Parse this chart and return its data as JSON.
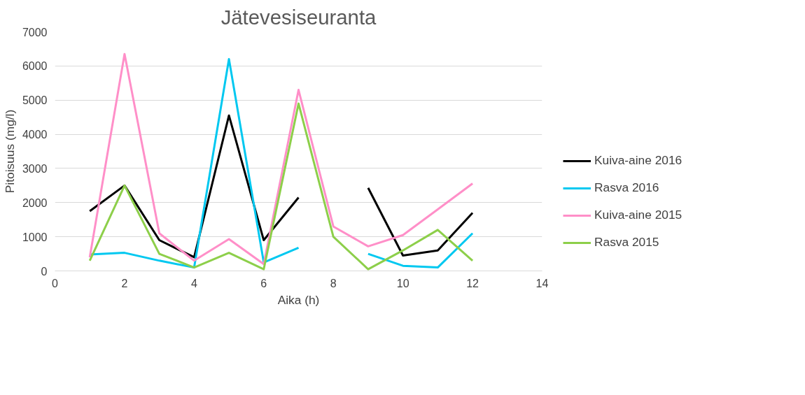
{
  "chart_data": {
    "type": "line",
    "title": "Jätevesiseuranta",
    "xlabel": "Aika (h)",
    "ylabel": "Pitoisuus (mg/l)",
    "x": [
      1,
      2,
      3,
      4,
      5,
      6,
      7,
      8,
      9,
      10,
      11,
      12
    ],
    "series": [
      {
        "name": "Kuiva-aine 2016",
        "color": "#000000",
        "values": [
          1750,
          2500,
          900,
          400,
          4550,
          900,
          2150,
          null,
          2430,
          450,
          600,
          1700
        ]
      },
      {
        "name": "Rasva 2016",
        "color": "#00c8f0",
        "values": [
          480,
          530,
          300,
          100,
          6200,
          250,
          680,
          null,
          500,
          150,
          100,
          1100
        ]
      },
      {
        "name": "Kuiva-aine 2015",
        "color": "#ff8fc8",
        "values": [
          400,
          6350,
          1100,
          300,
          930,
          200,
          5300,
          1300,
          720,
          1050,
          1800,
          2560
        ]
      },
      {
        "name": "Rasva 2015",
        "color": "#8dcf4a",
        "values": [
          300,
          2500,
          500,
          100,
          530,
          50,
          4900,
          1000,
          50,
          600,
          1200,
          300
        ]
      }
    ],
    "xlim": [
      0,
      14
    ],
    "xticks": [
      0,
      2,
      4,
      6,
      8,
      10,
      12,
      14
    ],
    "ylim": [
      0,
      7000
    ],
    "yticks": [
      0,
      1000,
      2000,
      3000,
      4000,
      5000,
      6000,
      7000
    ],
    "grid": "y",
    "legend": "right",
    "marker": "none",
    "line_style": "solid"
  }
}
